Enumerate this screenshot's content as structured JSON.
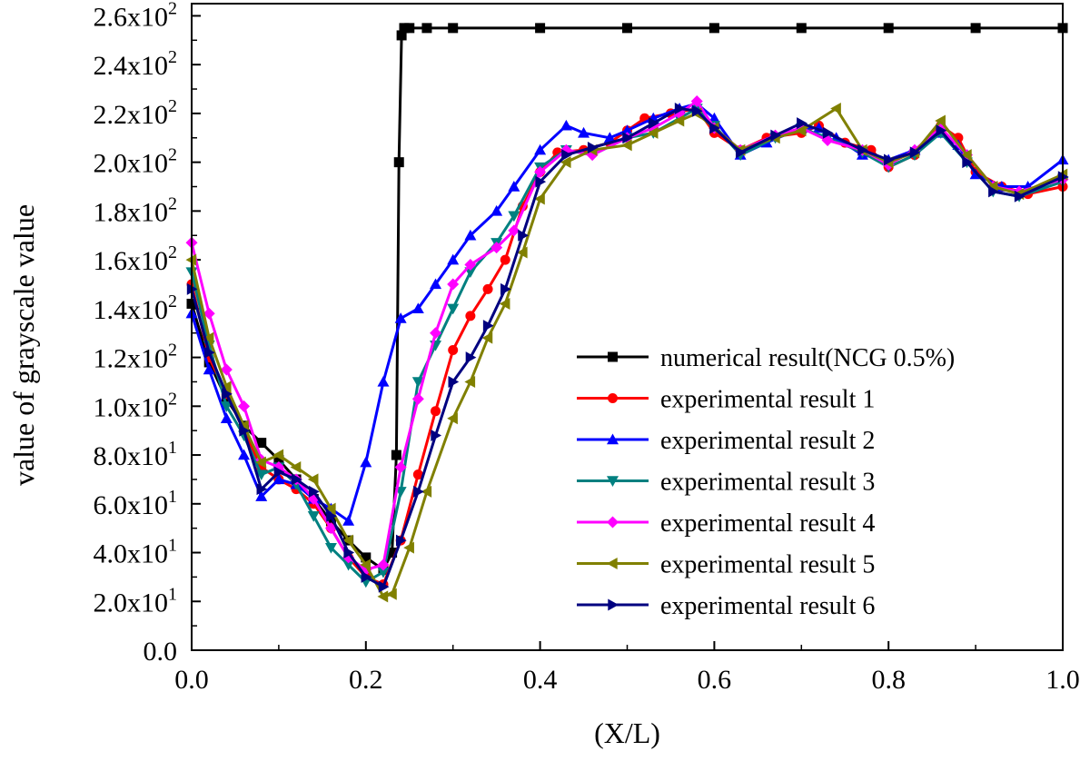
{
  "chart_data": {
    "type": "line",
    "xlabel": "(X/L)",
    "ylabel": "value of grayscale value",
    "xlim": [
      0.0,
      1.0
    ],
    "ylim": [
      0,
      265
    ],
    "legend_position": "bottom-right",
    "x_ticks": [
      {
        "value": 0.0,
        "label": "0.0"
      },
      {
        "value": 0.2,
        "label": "0.2"
      },
      {
        "value": 0.4,
        "label": "0.4"
      },
      {
        "value": 0.6,
        "label": "0.6"
      },
      {
        "value": 0.8,
        "label": "0.8"
      },
      {
        "value": 1.0,
        "label": "1.0"
      }
    ],
    "y_ticks": [
      {
        "value": 0,
        "mantissa": "0.0",
        "exp": ""
      },
      {
        "value": 20,
        "mantissa": "2.0x10",
        "exp": "1"
      },
      {
        "value": 40,
        "mantissa": "4.0x10",
        "exp": "1"
      },
      {
        "value": 60,
        "mantissa": "6.0x10",
        "exp": "1"
      },
      {
        "value": 80,
        "mantissa": "8.0x10",
        "exp": "1"
      },
      {
        "value": 100,
        "mantissa": "1.0x10",
        "exp": "2"
      },
      {
        "value": 120,
        "mantissa": "1.2x10",
        "exp": "2"
      },
      {
        "value": 140,
        "mantissa": "1.4x10",
        "exp": "2"
      },
      {
        "value": 160,
        "mantissa": "1.6x10",
        "exp": "2"
      },
      {
        "value": 180,
        "mantissa": "1.8x10",
        "exp": "2"
      },
      {
        "value": 200,
        "mantissa": "2.0x10",
        "exp": "2"
      },
      {
        "value": 220,
        "mantissa": "2.2x10",
        "exp": "2"
      },
      {
        "value": 240,
        "mantissa": "2.4x10",
        "exp": "2"
      },
      {
        "value": 260,
        "mantissa": "2.6x10",
        "exp": "2"
      }
    ],
    "series": [
      {
        "name": "numerical result(NCG 0.5%)",
        "color": "#000000",
        "marker": "square",
        "x": [
          0.0,
          0.02,
          0.04,
          0.06,
          0.08,
          0.1,
          0.12,
          0.14,
          0.16,
          0.18,
          0.2,
          0.22,
          0.23,
          0.235,
          0.238,
          0.241,
          0.244,
          0.25,
          0.27,
          0.3,
          0.4,
          0.5,
          0.6,
          0.7,
          0.8,
          0.9,
          1.0
        ],
        "y": [
          142,
          118,
          103,
          92,
          85,
          78,
          70,
          62,
          53,
          45,
          38,
          33,
          40,
          80,
          200,
          252,
          255,
          255,
          255,
          255,
          255,
          255,
          255,
          255,
          255,
          255,
          255
        ]
      },
      {
        "name": "experimental result  1",
        "color": "#ff0000",
        "marker": "circle",
        "x": [
          0.0,
          0.02,
          0.04,
          0.06,
          0.08,
          0.1,
          0.12,
          0.14,
          0.16,
          0.18,
          0.2,
          0.22,
          0.24,
          0.26,
          0.28,
          0.3,
          0.32,
          0.34,
          0.36,
          0.38,
          0.4,
          0.42,
          0.45,
          0.48,
          0.5,
          0.52,
          0.55,
          0.58,
          0.6,
          0.63,
          0.66,
          0.7,
          0.72,
          0.75,
          0.78,
          0.8,
          0.83,
          0.86,
          0.88,
          0.9,
          0.93,
          0.96,
          1.0
        ],
        "y": [
          150,
          120,
          105,
          90,
          75,
          70,
          66,
          60,
          50,
          38,
          30,
          27,
          45,
          72,
          98,
          123,
          137,
          148,
          160,
          182,
          196,
          204,
          205,
          208,
          213,
          218,
          220,
          222,
          212,
          205,
          210,
          212,
          215,
          208,
          205,
          198,
          203,
          215,
          210,
          196,
          190,
          187,
          190
        ]
      },
      {
        "name": "experimental result  2",
        "color": "#0000ff",
        "marker": "triangle-up",
        "x": [
          0.0,
          0.02,
          0.04,
          0.06,
          0.08,
          0.1,
          0.12,
          0.14,
          0.16,
          0.18,
          0.2,
          0.22,
          0.24,
          0.26,
          0.28,
          0.3,
          0.32,
          0.35,
          0.37,
          0.4,
          0.43,
          0.45,
          0.48,
          0.5,
          0.53,
          0.56,
          0.58,
          0.6,
          0.63,
          0.66,
          0.7,
          0.72,
          0.74,
          0.77,
          0.8,
          0.83,
          0.86,
          0.88,
          0.9,
          0.93,
          0.96,
          1.0
        ],
        "y": [
          138,
          115,
          95,
          80,
          63,
          70,
          68,
          62,
          58,
          53,
          77,
          110,
          136,
          140,
          150,
          160,
          170,
          180,
          190,
          205,
          215,
          212,
          210,
          213,
          218,
          222,
          224,
          218,
          203,
          208,
          214,
          214,
          210,
          203,
          201,
          205,
          212,
          207,
          195,
          190,
          190,
          201
        ]
      },
      {
        "name": "experimental result  3",
        "color": "#008080",
        "marker": "triangle-down",
        "x": [
          0.0,
          0.02,
          0.04,
          0.06,
          0.08,
          0.1,
          0.12,
          0.14,
          0.16,
          0.18,
          0.2,
          0.22,
          0.24,
          0.26,
          0.28,
          0.3,
          0.32,
          0.35,
          0.37,
          0.4,
          0.43,
          0.46,
          0.5,
          0.53,
          0.56,
          0.58,
          0.6,
          0.63,
          0.67,
          0.7,
          0.73,
          0.77,
          0.8,
          0.83,
          0.86,
          0.89,
          0.92,
          0.95,
          1.0
        ],
        "y": [
          155,
          125,
          100,
          88,
          72,
          75,
          68,
          55,
          42,
          35,
          28,
          32,
          65,
          110,
          125,
          140,
          155,
          167,
          178,
          198,
          205,
          203,
          210,
          212,
          218,
          222,
          215,
          203,
          210,
          214,
          210,
          204,
          198,
          203,
          212,
          200,
          188,
          186,
          192
        ]
      },
      {
        "name": "experimental result  4",
        "color": "#ff00ff",
        "marker": "diamond",
        "x": [
          0.0,
          0.02,
          0.04,
          0.06,
          0.08,
          0.1,
          0.12,
          0.14,
          0.16,
          0.18,
          0.2,
          0.22,
          0.24,
          0.26,
          0.28,
          0.3,
          0.32,
          0.35,
          0.37,
          0.4,
          0.43,
          0.46,
          0.5,
          0.53,
          0.56,
          0.58,
          0.6,
          0.63,
          0.67,
          0.7,
          0.73,
          0.77,
          0.8,
          0.83,
          0.86,
          0.89,
          0.92,
          0.95,
          1.0
        ],
        "y": [
          167,
          138,
          115,
          100,
          78,
          75,
          70,
          62,
          50,
          38,
          33,
          35,
          75,
          103,
          130,
          150,
          158,
          165,
          172,
          196,
          205,
          203,
          210,
          214,
          220,
          225,
          214,
          205,
          211,
          214,
          209,
          205,
          199,
          205,
          214,
          203,
          190,
          188,
          193
        ]
      },
      {
        "name": "experimental result  5",
        "color": "#808000",
        "marker": "triangle-left",
        "x": [
          0.0,
          0.02,
          0.04,
          0.06,
          0.08,
          0.1,
          0.12,
          0.14,
          0.16,
          0.18,
          0.2,
          0.22,
          0.23,
          0.25,
          0.27,
          0.3,
          0.32,
          0.34,
          0.36,
          0.38,
          0.4,
          0.43,
          0.46,
          0.5,
          0.53,
          0.56,
          0.58,
          0.6,
          0.63,
          0.67,
          0.7,
          0.74,
          0.77,
          0.8,
          0.83,
          0.86,
          0.89,
          0.92,
          0.95,
          1.0
        ],
        "y": [
          160,
          128,
          108,
          92,
          77,
          80,
          75,
          70,
          58,
          45,
          35,
          22,
          23,
          42,
          65,
          95,
          110,
          128,
          142,
          163,
          185,
          200,
          205,
          207,
          212,
          217,
          220,
          214,
          205,
          210,
          213,
          222,
          205,
          200,
          204,
          217,
          203,
          190,
          187,
          195
        ]
      },
      {
        "name": "experimental result  6",
        "color": "#000080",
        "marker": "triangle-right",
        "x": [
          0.0,
          0.02,
          0.04,
          0.06,
          0.08,
          0.1,
          0.12,
          0.14,
          0.16,
          0.18,
          0.2,
          0.22,
          0.24,
          0.26,
          0.28,
          0.3,
          0.32,
          0.34,
          0.36,
          0.38,
          0.4,
          0.43,
          0.46,
          0.5,
          0.53,
          0.56,
          0.58,
          0.6,
          0.63,
          0.67,
          0.7,
          0.73,
          0.77,
          0.8,
          0.83,
          0.86,
          0.89,
          0.92,
          0.95,
          1.0
        ],
        "y": [
          148,
          122,
          105,
          90,
          66,
          73,
          70,
          65,
          55,
          40,
          30,
          26,
          45,
          65,
          88,
          110,
          120,
          133,
          148,
          170,
          192,
          203,
          206,
          210,
          216,
          222,
          221,
          214,
          204,
          211,
          216,
          212,
          205,
          201,
          204,
          213,
          200,
          188,
          186,
          194
        ]
      }
    ]
  }
}
